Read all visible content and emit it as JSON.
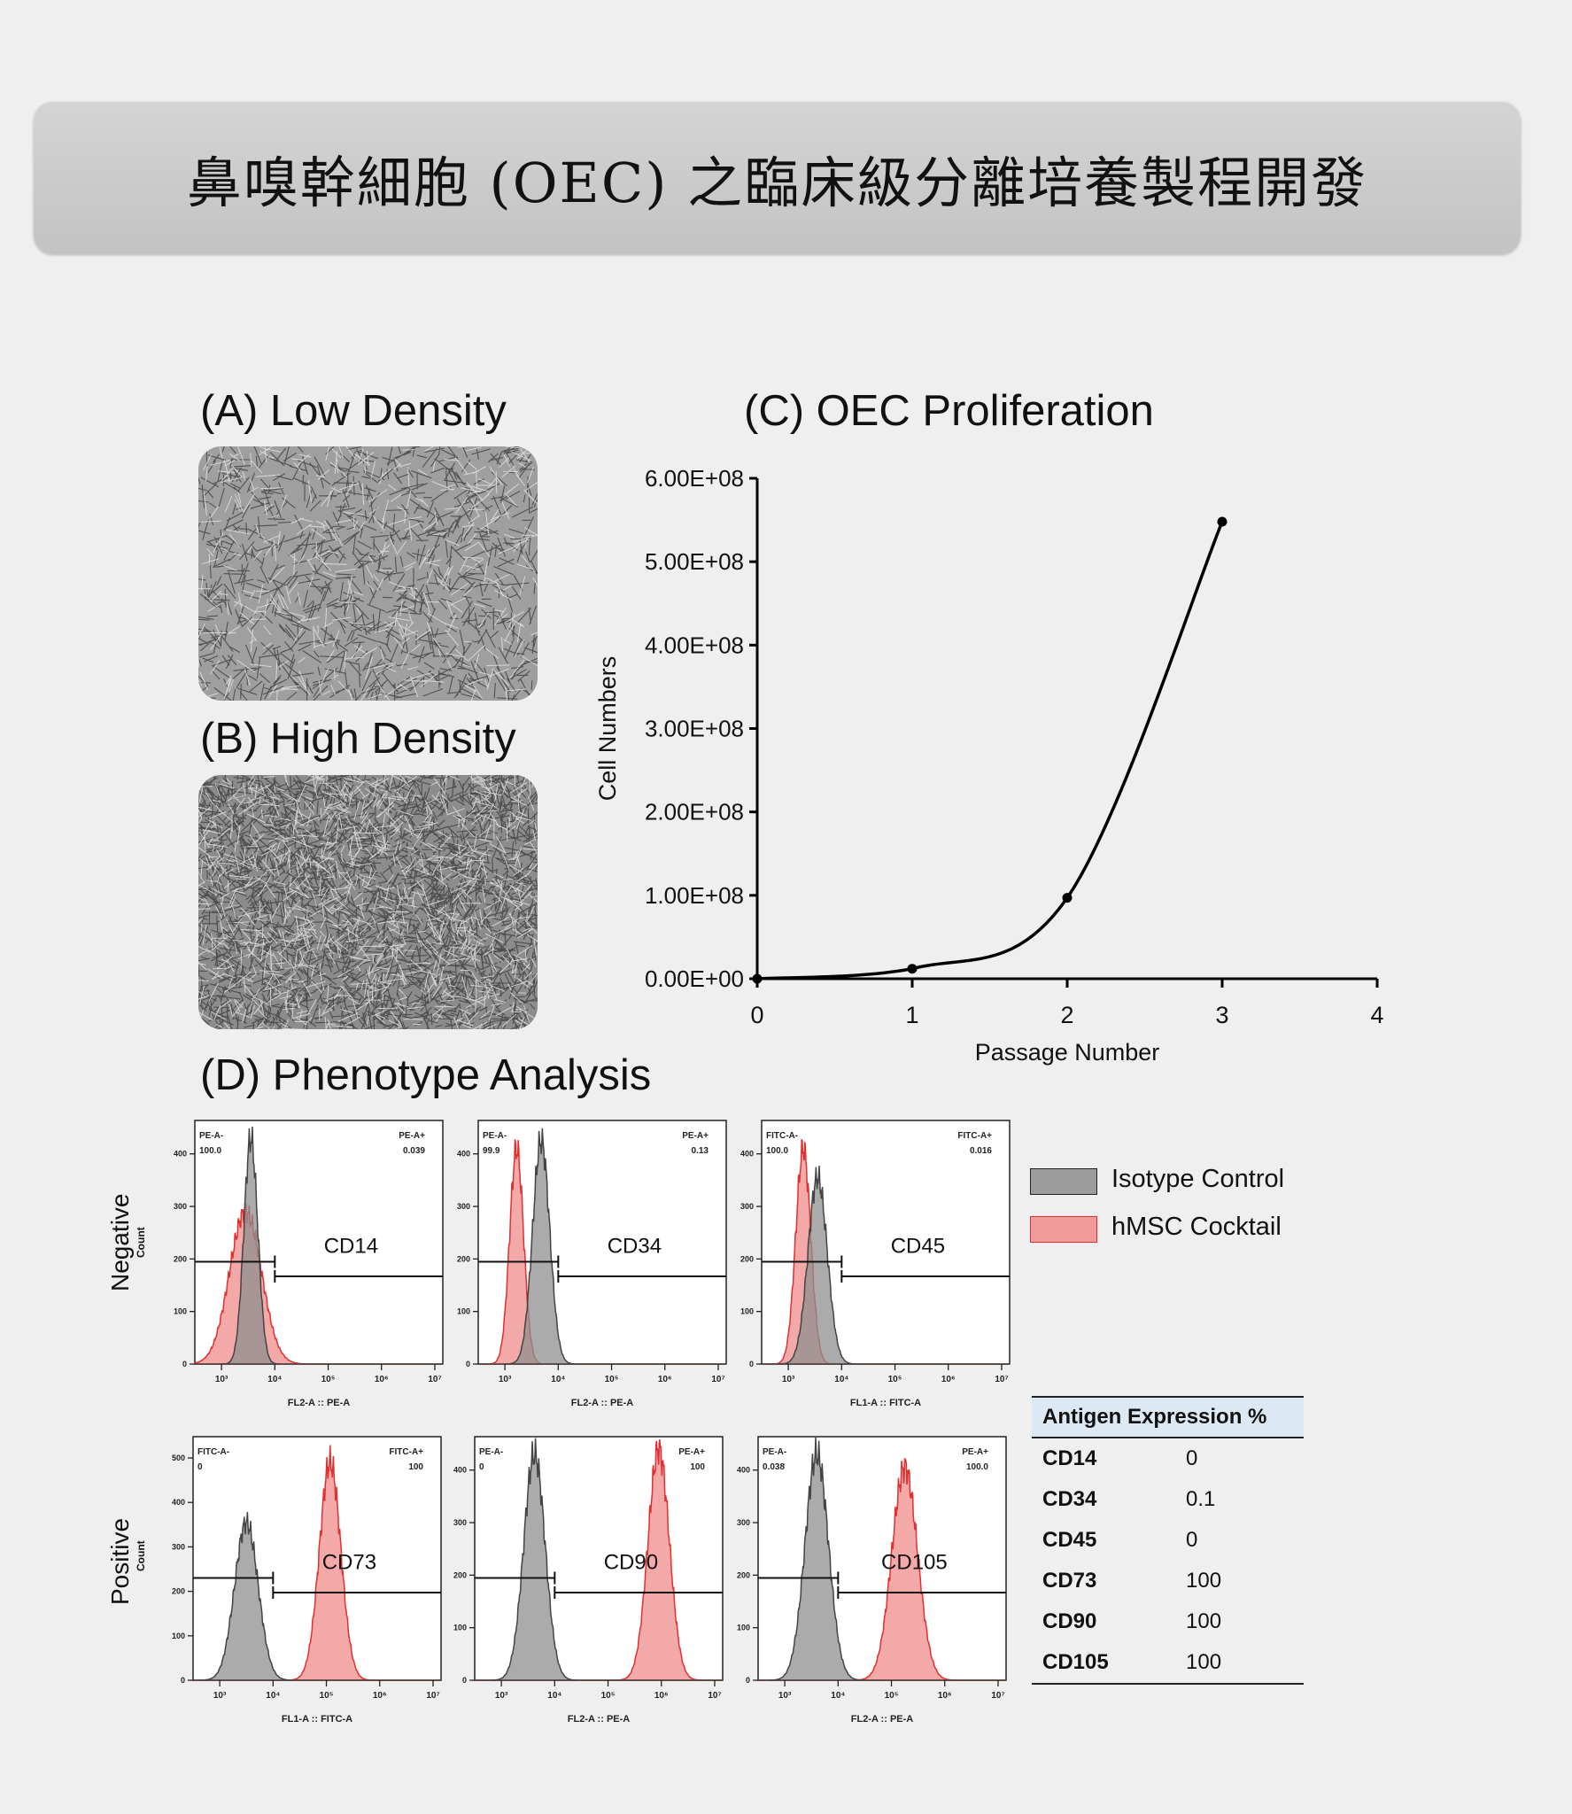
{
  "title": "鼻嗅幹細胞 (OEC) 之臨床級分離培養製程開發",
  "panels": {
    "a": "(A) Low Density",
    "b": "(B) High Density",
    "c": "(C) OEC Proliferation",
    "d": "(D) Phenotype Analysis"
  },
  "row_labels": {
    "negative": "Negative",
    "positive": "Positive",
    "count": "Count"
  },
  "chart_data": [
    {
      "type": "line",
      "title": "(C) OEC Proliferation",
      "xlabel": "Passage Number",
      "ylabel": "Cell Numbers",
      "x": [
        0,
        1,
        2,
        3
      ],
      "y": [
        0,
        12000000,
        97000000,
        548000000
      ],
      "xlim": [
        0,
        4
      ],
      "ylim": [
        0,
        600000000
      ],
      "x_ticks": [
        "0",
        "1",
        "2",
        "3",
        "4"
      ],
      "y_ticks": [
        "0.00E+00",
        "1.00E+08",
        "2.00E+08",
        "3.00E+08",
        "4.00E+08",
        "5.00E+08",
        "6.00E+08"
      ],
      "smooth": true,
      "grid": false
    },
    {
      "type": "area",
      "title": "(D) Phenotype Analysis",
      "x_scale": "log",
      "x_ticks": [
        "10³",
        "10⁴",
        "10⁵",
        "10⁶",
        "10⁷"
      ],
      "legend": [
        "Isotype Control",
        "hMSC Cocktail"
      ],
      "legend_position": "right",
      "series_colors": {
        "isotype": "#8f8f8f",
        "cocktail": "#f29a9a",
        "cocktail_line": "#e03030"
      },
      "histograms": [
        {
          "marker": "CD14",
          "row": "negative",
          "xlabel": "FL2-A :: PE-A",
          "ymax": 440,
          "yticks": [
            "0",
            "100",
            "200",
            "300",
            "400"
          ],
          "gate_left": "PE-A-",
          "gate_left_value": "100.0",
          "gate_right": "PE-A+",
          "gate_right_value": "0.039",
          "isotype": {
            "peak_log": 3.55,
            "sigma": 0.13,
            "height": 430
          },
          "cocktail": {
            "peak_log": 3.45,
            "sigma": 0.3,
            "height": 290
          }
        },
        {
          "marker": "CD34",
          "row": "negative",
          "xlabel": "FL2-A :: PE-A",
          "ymax": 440,
          "yticks": [
            "0",
            "100",
            "200",
            "300",
            "400"
          ],
          "gate_left": "PE-A-",
          "gate_left_value": "99.9",
          "gate_right": "PE-A+",
          "gate_right_value": "0.13",
          "isotype": {
            "peak_log": 3.68,
            "sigma": 0.16,
            "height": 425
          },
          "cocktail": {
            "peak_log": 3.22,
            "sigma": 0.13,
            "height": 410
          }
        },
        {
          "marker": "CD45",
          "row": "negative",
          "xlabel": "FL1-A :: FITC-A",
          "ymax": 440,
          "yticks": [
            "0",
            "100",
            "200",
            "300",
            "400"
          ],
          "gate_left": "FITC-A-",
          "gate_left_value": "100.0",
          "gate_right": "FITC-A+",
          "gate_right_value": "0.016",
          "isotype": {
            "peak_log": 3.55,
            "sigma": 0.18,
            "height": 355
          },
          "cocktail": {
            "peak_log": 3.28,
            "sigma": 0.14,
            "height": 410
          }
        },
        {
          "marker": "CD73",
          "row": "positive",
          "xlabel": "FL1-A :: FITC-A",
          "ymax": 520,
          "yticks": [
            "0",
            "100",
            "200",
            "300",
            "400",
            "500"
          ],
          "gate_left": "FITC-A-",
          "gate_left_value": "0",
          "gate_right": "FITC-A+",
          "gate_right_value": "100",
          "isotype": {
            "peak_log": 3.5,
            "sigma": 0.22,
            "height": 355
          },
          "cocktail": {
            "peak_log": 5.07,
            "sigma": 0.2,
            "height": 490
          }
        },
        {
          "marker": "CD90",
          "row": "positive",
          "xlabel": "FL2-A :: PE-A",
          "ymax": 440,
          "yticks": [
            "0",
            "100",
            "200",
            "300",
            "400"
          ],
          "gate_left": "PE-A-",
          "gate_left_value": "0",
          "gate_right": "PE-A+",
          "gate_right_value": "100",
          "isotype": {
            "peak_log": 3.62,
            "sigma": 0.2,
            "height": 430
          },
          "cocktail": {
            "peak_log": 5.95,
            "sigma": 0.2,
            "height": 440
          }
        },
        {
          "marker": "CD105",
          "row": "positive",
          "xlabel": "FL2-A :: PE-A",
          "ymax": 440,
          "yticks": [
            "0",
            "100",
            "200",
            "300",
            "400"
          ],
          "gate_left": "PE-A-",
          "gate_left_value": "0.038",
          "gate_right": "PE-A+",
          "gate_right_value": "100.0",
          "isotype": {
            "peak_log": 3.6,
            "sigma": 0.22,
            "height": 430
          },
          "cocktail": {
            "peak_log": 5.25,
            "sigma": 0.24,
            "height": 405
          }
        }
      ]
    },
    {
      "type": "table",
      "header": "Antigen Expression %",
      "rows": [
        {
          "antigen": "CD14",
          "value": "0"
        },
        {
          "antigen": "CD34",
          "value": "0.1"
        },
        {
          "antigen": "CD45",
          "value": "0"
        },
        {
          "antigen": "CD73",
          "value": "100"
        },
        {
          "antigen": "CD90",
          "value": "100"
        },
        {
          "antigen": "CD105",
          "value": "100"
        }
      ]
    }
  ]
}
